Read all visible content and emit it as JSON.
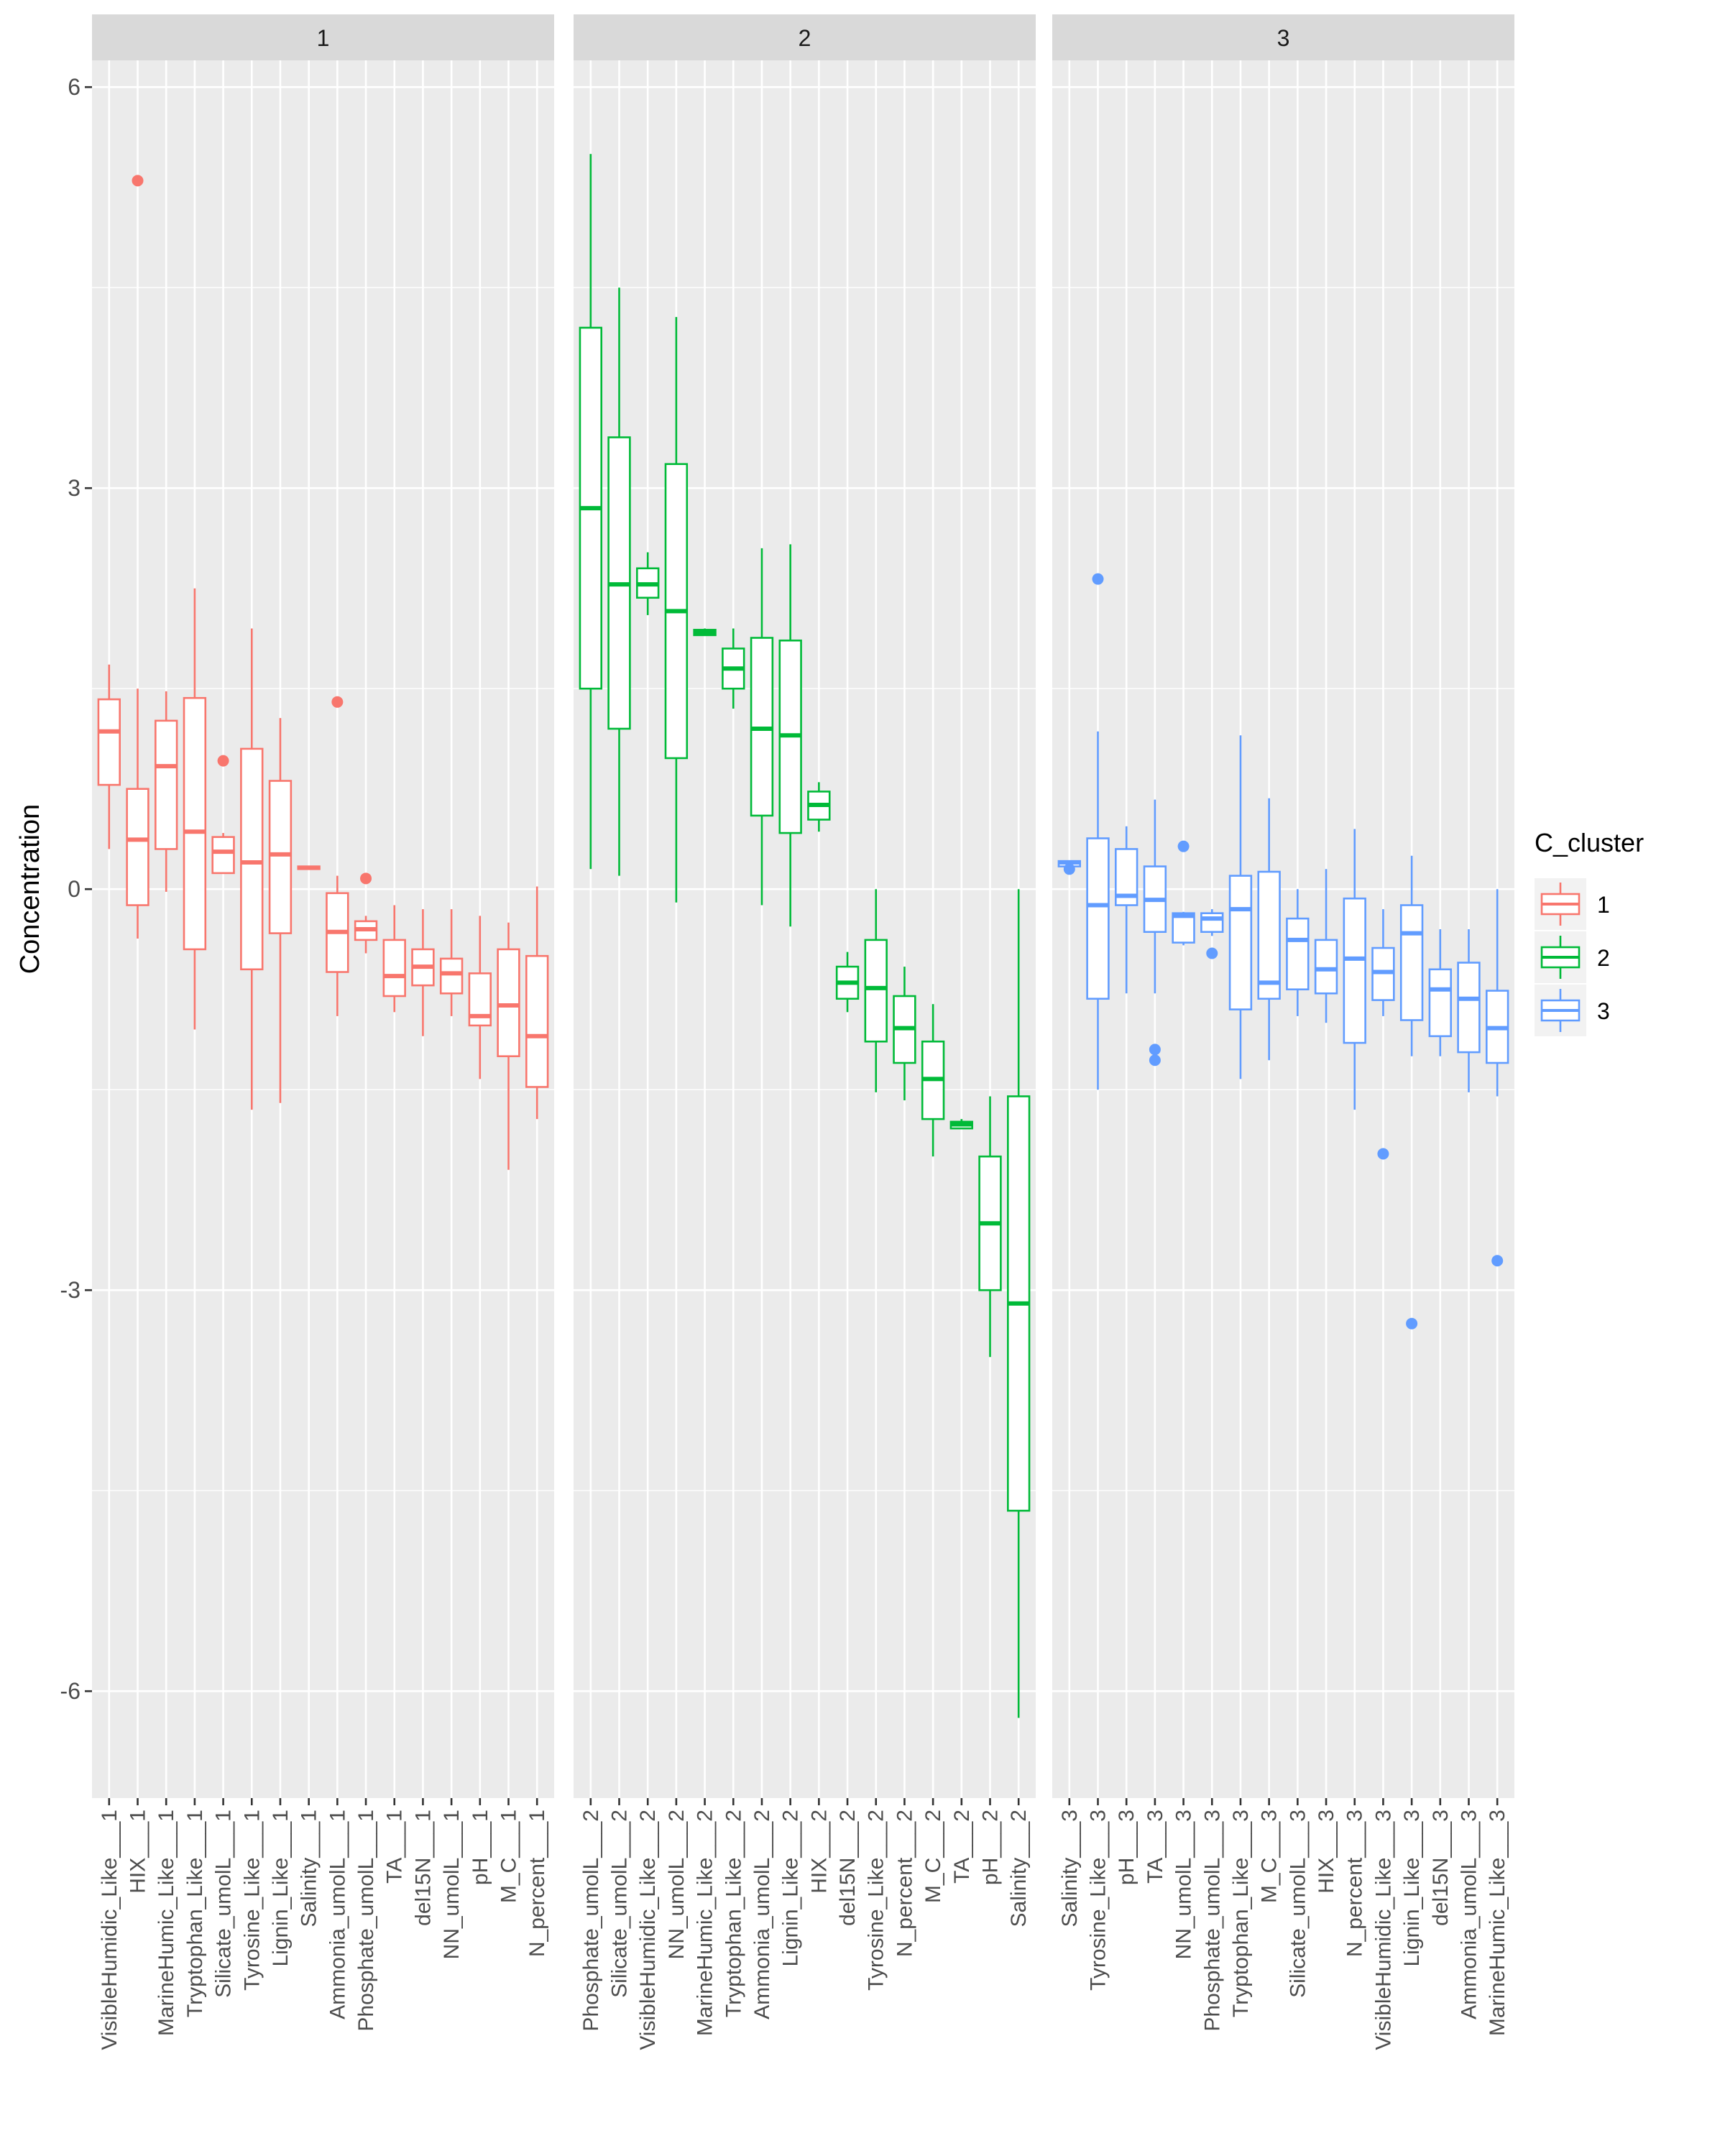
{
  "chart_data": {
    "type": "boxplot",
    "ylabel": "Concentration",
    "xlabel": "",
    "ylim": [
      -6.8,
      6.2
    ],
    "y_ticks": [
      6,
      3,
      0,
      -3,
      -6
    ],
    "y_tick_labels": [
      "6",
      "3",
      "0",
      "-3",
      "-6"
    ],
    "grid": true,
    "legend": {
      "title": "C_cluster",
      "position": "right",
      "entries": [
        {
          "label": "1",
          "color": "#F8766D"
        },
        {
          "label": "2",
          "color": "#00BA38"
        },
        {
          "label": "3",
          "color": "#619CFF"
        }
      ]
    },
    "panels": [
      {
        "strip": "1",
        "color": "#F8766D",
        "boxes": [
          {
            "label": "VisibleHumidic_Like___1",
            "lower": 0.3,
            "q1": 0.78,
            "median": 1.18,
            "q3": 1.42,
            "upper": 1.68,
            "outliers": []
          },
          {
            "label": "HIX___1",
            "lower": -0.37,
            "q1": -0.12,
            "median": 0.37,
            "q3": 0.75,
            "upper": 1.5,
            "outliers": [
              5.3
            ]
          },
          {
            "label": "MarineHumic_Like___1",
            "lower": -0.02,
            "q1": 0.3,
            "median": 0.92,
            "q3": 1.26,
            "upper": 1.48,
            "outliers": []
          },
          {
            "label": "Tryptophan_Like___1",
            "lower": -1.05,
            "q1": -0.45,
            "median": 0.43,
            "q3": 1.43,
            "upper": 2.25,
            "outliers": []
          },
          {
            "label": "Silicate_umolL___1",
            "lower": 0.12,
            "q1": 0.12,
            "median": 0.28,
            "q3": 0.39,
            "upper": 0.42,
            "outliers": [
              0.96
            ]
          },
          {
            "label": "Tyrosine_Like___1",
            "lower": -1.65,
            "q1": -0.6,
            "median": 0.2,
            "q3": 1.05,
            "upper": 1.95,
            "outliers": []
          },
          {
            "label": "Lignin_Like___1",
            "lower": -1.6,
            "q1": -0.33,
            "median": 0.26,
            "q3": 0.81,
            "upper": 1.28,
            "outliers": []
          },
          {
            "label": "Salinity___1",
            "lower": 0.15,
            "q1": 0.15,
            "median": 0.16,
            "q3": 0.17,
            "upper": 0.17,
            "outliers": []
          },
          {
            "label": "Ammonia_umolL___1",
            "lower": -0.95,
            "q1": -0.62,
            "median": -0.32,
            "q3": -0.03,
            "upper": 0.1,
            "outliers": [
              1.4
            ]
          },
          {
            "label": "Phosphate_umolL___1",
            "lower": -0.48,
            "q1": -0.38,
            "median": -0.3,
            "q3": -0.24,
            "upper": -0.2,
            "outliers": [
              0.08
            ]
          },
          {
            "label": "TA___1",
            "lower": -0.92,
            "q1": -0.8,
            "median": -0.65,
            "q3": -0.38,
            "upper": -0.12,
            "outliers": []
          },
          {
            "label": "del15N___1",
            "lower": -1.1,
            "q1": -0.72,
            "median": -0.58,
            "q3": -0.45,
            "upper": -0.15,
            "outliers": []
          },
          {
            "label": "NN_umolL___1",
            "lower": -0.95,
            "q1": -0.78,
            "median": -0.63,
            "q3": -0.52,
            "upper": -0.15,
            "outliers": []
          },
          {
            "label": "pH___1",
            "lower": -1.42,
            "q1": -1.02,
            "median": -0.95,
            "q3": -0.63,
            "upper": -0.2,
            "outliers": []
          },
          {
            "label": "M_C___1",
            "lower": -2.1,
            "q1": -1.25,
            "median": -0.87,
            "q3": -0.45,
            "upper": -0.25,
            "outliers": []
          },
          {
            "label": "N_percent___1",
            "lower": -1.72,
            "q1": -1.48,
            "median": -1.1,
            "q3": -0.5,
            "upper": 0.02,
            "outliers": []
          }
        ]
      },
      {
        "strip": "2",
        "color": "#00BA38",
        "boxes": [
          {
            "label": "Phosphate_umolL___2",
            "lower": 0.15,
            "q1": 1.5,
            "median": 2.85,
            "q3": 4.2,
            "upper": 5.5,
            "outliers": []
          },
          {
            "label": "Silicate_umolL___2",
            "lower": 0.1,
            "q1": 1.2,
            "median": 2.28,
            "q3": 3.38,
            "upper": 4.5,
            "outliers": []
          },
          {
            "label": "VisibleHumidic_Like___2",
            "lower": 2.05,
            "q1": 2.18,
            "median": 2.28,
            "q3": 2.4,
            "upper": 2.52,
            "outliers": []
          },
          {
            "label": "NN_umolL___2",
            "lower": -0.1,
            "q1": 0.98,
            "median": 2.08,
            "q3": 3.18,
            "upper": 4.28,
            "outliers": []
          },
          {
            "label": "MarineHumic_Like___2",
            "lower": 1.9,
            "q1": 1.9,
            "median": 1.92,
            "q3": 1.94,
            "upper": 1.95,
            "outliers": []
          },
          {
            "label": "Tryptophan_Like___2",
            "lower": 1.35,
            "q1": 1.5,
            "median": 1.65,
            "q3": 1.8,
            "upper": 1.95,
            "outliers": []
          },
          {
            "label": "Ammonia_umolL___2",
            "lower": -0.12,
            "q1": 0.55,
            "median": 1.2,
            "q3": 1.88,
            "upper": 2.55,
            "outliers": []
          },
          {
            "label": "Lignin_Like___2",
            "lower": -0.28,
            "q1": 0.42,
            "median": 1.15,
            "q3": 1.86,
            "upper": 2.58,
            "outliers": []
          },
          {
            "label": "HIX___2",
            "lower": 0.43,
            "q1": 0.52,
            "median": 0.63,
            "q3": 0.73,
            "upper": 0.8,
            "outliers": []
          },
          {
            "label": "del15N___2",
            "lower": -0.92,
            "q1": -0.82,
            "median": -0.7,
            "q3": -0.58,
            "upper": -0.47,
            "outliers": []
          },
          {
            "label": "Tyrosine_Like___2",
            "lower": -1.52,
            "q1": -1.14,
            "median": -0.74,
            "q3": -0.38,
            "upper": 0.0,
            "outliers": []
          },
          {
            "label": "N_percent___2",
            "lower": -1.58,
            "q1": -1.3,
            "median": -1.04,
            "q3": -0.8,
            "upper": -0.58,
            "outliers": []
          },
          {
            "label": "M_C___2",
            "lower": -2.0,
            "q1": -1.72,
            "median": -1.42,
            "q3": -1.14,
            "upper": -0.86,
            "outliers": []
          },
          {
            "label": "TA___2",
            "lower": -1.79,
            "q1": -1.79,
            "median": -1.76,
            "q3": -1.74,
            "upper": -1.72,
            "outliers": []
          },
          {
            "label": "pH___2",
            "lower": -3.5,
            "q1": -3.0,
            "median": -2.5,
            "q3": -2.0,
            "upper": -1.55,
            "outliers": []
          },
          {
            "label": "Salinity___2",
            "lower": -6.2,
            "q1": -4.65,
            "median": -3.1,
            "q3": -1.55,
            "upper": 0.0,
            "outliers": []
          }
        ]
      },
      {
        "strip": "3",
        "color": "#619CFF",
        "boxes": [
          {
            "label": "Salinity___3",
            "lower": 0.16,
            "q1": 0.17,
            "median": 0.2,
            "q3": 0.21,
            "upper": 0.21,
            "outliers": [
              0.15
            ]
          },
          {
            "label": "Tyrosine_Like___3",
            "lower": -1.5,
            "q1": -0.82,
            "median": -0.12,
            "q3": 0.38,
            "upper": 1.18,
            "outliers": [
              2.32
            ]
          },
          {
            "label": "pH___3",
            "lower": -0.78,
            "q1": -0.12,
            "median": -0.05,
            "q3": 0.3,
            "upper": 0.47,
            "outliers": []
          },
          {
            "label": "TA___3",
            "lower": -0.78,
            "q1": -0.32,
            "median": -0.08,
            "q3": 0.17,
            "upper": 0.67,
            "outliers": [
              -1.2,
              -1.28
            ]
          },
          {
            "label": "NN_umolL___3",
            "lower": -0.42,
            "q1": -0.4,
            "median": -0.2,
            "q3": -0.18,
            "upper": -0.17,
            "outliers": [
              0.32
            ]
          },
          {
            "label": "Phosphate_umolL___3",
            "lower": -0.35,
            "q1": -0.32,
            "median": -0.22,
            "q3": -0.18,
            "upper": -0.15,
            "outliers": [
              -0.48
            ]
          },
          {
            "label": "Tryptophan_Like___3",
            "lower": -1.42,
            "q1": -0.9,
            "median": -0.15,
            "q3": 0.1,
            "upper": 1.15,
            "outliers": []
          },
          {
            "label": "M_C___3",
            "lower": -1.28,
            "q1": -0.82,
            "median": -0.7,
            "q3": 0.13,
            "upper": 0.68,
            "outliers": []
          },
          {
            "label": "Silicate_umolL___3",
            "lower": -0.95,
            "q1": -0.75,
            "median": -0.38,
            "q3": -0.22,
            "upper": 0.0,
            "outliers": []
          },
          {
            "label": "HIX___3",
            "lower": -1.0,
            "q1": -0.78,
            "median": -0.6,
            "q3": -0.38,
            "upper": 0.15,
            "outliers": []
          },
          {
            "label": "N_percent___3",
            "lower": -1.65,
            "q1": -1.15,
            "median": -0.52,
            "q3": -0.07,
            "upper": 0.45,
            "outliers": []
          },
          {
            "label": "VisibleHumidic_Like___3",
            "lower": -0.95,
            "q1": -0.83,
            "median": -0.62,
            "q3": -0.44,
            "upper": -0.15,
            "outliers": [
              -1.98
            ]
          },
          {
            "label": "Lignin_Like___3",
            "lower": -1.25,
            "q1": -0.98,
            "median": -0.33,
            "q3": -0.12,
            "upper": 0.25,
            "outliers": [
              -3.25
            ]
          },
          {
            "label": "del15N___3",
            "lower": -1.25,
            "q1": -1.1,
            "median": -0.75,
            "q3": -0.6,
            "upper": -0.3,
            "outliers": []
          },
          {
            "label": "Ammonia_umolL___3",
            "lower": -1.52,
            "q1": -1.22,
            "median": -0.82,
            "q3": -0.55,
            "upper": -0.3,
            "outliers": []
          },
          {
            "label": "MarineHumic_Like___3",
            "lower": -1.55,
            "q1": -1.3,
            "median": -1.04,
            "q3": -0.76,
            "upper": 0.0,
            "outliers": [
              -2.78
            ]
          }
        ]
      }
    ]
  }
}
